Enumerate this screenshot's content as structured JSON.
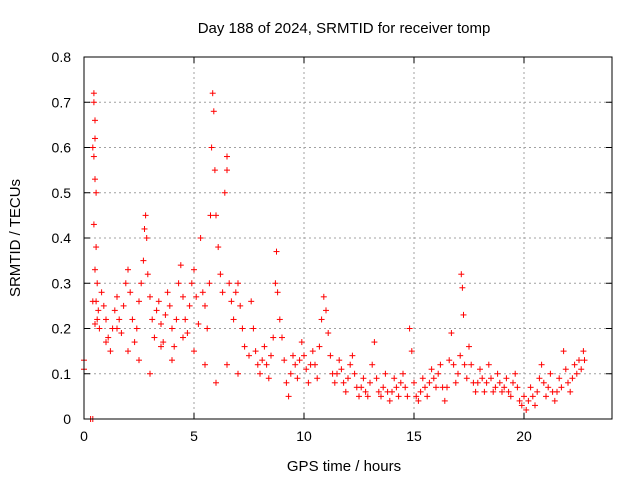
{
  "chart_data": {
    "type": "scatter",
    "title": "Day 188 of 2024, SRMTID for receiver tomp",
    "xlabel": "GPS time / hours",
    "ylabel": "SRMTID / TECUs",
    "xlim": [
      0,
      24
    ],
    "ylim": [
      0,
      0.8
    ],
    "xticks": [
      0,
      5,
      10,
      15,
      20
    ],
    "xtick_labels": [
      "0",
      "5",
      "10",
      "15",
      "20"
    ],
    "yticks": [
      0,
      0.1,
      0.2,
      0.3,
      0.4,
      0.5,
      0.6,
      0.7,
      0.8
    ],
    "ytick_labels": [
      "0",
      "0.1",
      "0.2",
      "0.3",
      "0.4",
      "0.5",
      "0.6",
      "0.7",
      "0.8"
    ],
    "grid": true,
    "marker": "+",
    "color": "#ff0000",
    "series": [
      {
        "name": "SRMTID",
        "points": [
          [
            0.0,
            0.13
          ],
          [
            0.0,
            0.11
          ],
          [
            0.3,
            0.0
          ],
          [
            0.4,
            0.0
          ],
          [
            0.4,
            0.6
          ],
          [
            0.45,
            0.72
          ],
          [
            0.45,
            0.7
          ],
          [
            0.5,
            0.66
          ],
          [
            0.5,
            0.62
          ],
          [
            0.45,
            0.58
          ],
          [
            0.5,
            0.53
          ],
          [
            0.55,
            0.5
          ],
          [
            0.45,
            0.43
          ],
          [
            0.55,
            0.38
          ],
          [
            0.5,
            0.33
          ],
          [
            0.6,
            0.3
          ],
          [
            0.55,
            0.26
          ],
          [
            0.65,
            0.24
          ],
          [
            0.6,
            0.22
          ],
          [
            0.7,
            0.2
          ],
          [
            0.4,
            0.26
          ],
          [
            0.5,
            0.21
          ],
          [
            0.8,
            0.28
          ],
          [
            0.9,
            0.25
          ],
          [
            1.0,
            0.22
          ],
          [
            1.1,
            0.18
          ],
          [
            1.2,
            0.15
          ],
          [
            1.3,
            0.2
          ],
          [
            1.4,
            0.24
          ],
          [
            1.5,
            0.27
          ],
          [
            1.6,
            0.22
          ],
          [
            1.7,
            0.19
          ],
          [
            1.8,
            0.25
          ],
          [
            1.9,
            0.3
          ],
          [
            2.0,
            0.33
          ],
          [
            2.1,
            0.28
          ],
          [
            2.2,
            0.22
          ],
          [
            2.3,
            0.17
          ],
          [
            2.4,
            0.2
          ],
          [
            2.5,
            0.26
          ],
          [
            2.6,
            0.3
          ],
          [
            2.7,
            0.35
          ],
          [
            2.75,
            0.42
          ],
          [
            2.8,
            0.45
          ],
          [
            2.85,
            0.4
          ],
          [
            2.9,
            0.32
          ],
          [
            3.0,
            0.27
          ],
          [
            3.1,
            0.22
          ],
          [
            3.2,
            0.18
          ],
          [
            3.3,
            0.24
          ],
          [
            3.4,
            0.26
          ],
          [
            3.5,
            0.21
          ],
          [
            3.6,
            0.17
          ],
          [
            3.7,
            0.23
          ],
          [
            3.8,
            0.28
          ],
          [
            3.9,
            0.25
          ],
          [
            4.0,
            0.2
          ],
          [
            4.1,
            0.16
          ],
          [
            4.2,
            0.22
          ],
          [
            4.3,
            0.3
          ],
          [
            4.4,
            0.34
          ],
          [
            4.5,
            0.27
          ],
          [
            4.6,
            0.22
          ],
          [
            4.7,
            0.19
          ],
          [
            4.8,
            0.25
          ],
          [
            4.9,
            0.3
          ],
          [
            5.0,
            0.33
          ],
          [
            5.1,
            0.27
          ],
          [
            5.2,
            0.21
          ],
          [
            5.3,
            0.4
          ],
          [
            5.4,
            0.28
          ],
          [
            5.5,
            0.25
          ],
          [
            5.6,
            0.2
          ],
          [
            5.7,
            0.3
          ],
          [
            5.75,
            0.45
          ],
          [
            5.8,
            0.6
          ],
          [
            5.85,
            0.72
          ],
          [
            5.9,
            0.68
          ],
          [
            5.95,
            0.55
          ],
          [
            6.0,
            0.45
          ],
          [
            6.1,
            0.38
          ],
          [
            6.2,
            0.32
          ],
          [
            6.3,
            0.28
          ],
          [
            6.4,
            0.5
          ],
          [
            6.5,
            0.58
          ],
          [
            6.5,
            0.55
          ],
          [
            6.6,
            0.3
          ],
          [
            6.7,
            0.26
          ],
          [
            6.8,
            0.22
          ],
          [
            6.9,
            0.28
          ],
          [
            7.0,
            0.3
          ],
          [
            7.1,
            0.25
          ],
          [
            7.2,
            0.2
          ],
          [
            7.3,
            0.16
          ],
          [
            1.0,
            0.17
          ],
          [
            1.5,
            0.2
          ],
          [
            2.0,
            0.15
          ],
          [
            2.5,
            0.13
          ],
          [
            3.0,
            0.1
          ],
          [
            3.5,
            0.16
          ],
          [
            4.0,
            0.13
          ],
          [
            4.5,
            0.18
          ],
          [
            5.0,
            0.15
          ],
          [
            5.5,
            0.12
          ],
          [
            6.0,
            0.08
          ],
          [
            6.5,
            0.12
          ],
          [
            7.0,
            0.1
          ],
          [
            7.5,
            0.14
          ],
          [
            7.6,
            0.26
          ],
          [
            7.7,
            0.2
          ],
          [
            7.8,
            0.15
          ],
          [
            7.9,
            0.12
          ],
          [
            8.0,
            0.1
          ],
          [
            8.1,
            0.13
          ],
          [
            8.2,
            0.16
          ],
          [
            8.3,
            0.12
          ],
          [
            8.4,
            0.09
          ],
          [
            8.5,
            0.14
          ],
          [
            8.6,
            0.18
          ],
          [
            8.7,
            0.3
          ],
          [
            8.75,
            0.37
          ],
          [
            8.8,
            0.28
          ],
          [
            8.9,
            0.22
          ],
          [
            9.0,
            0.18
          ],
          [
            9.1,
            0.13
          ],
          [
            9.2,
            0.08
          ],
          [
            9.3,
            0.05
          ],
          [
            9.4,
            0.1
          ],
          [
            9.5,
            0.14
          ],
          [
            9.6,
            0.12
          ],
          [
            9.7,
            0.09
          ],
          [
            9.8,
            0.13
          ],
          [
            9.9,
            0.17
          ],
          [
            10.0,
            0.14
          ],
          [
            10.1,
            0.11
          ],
          [
            10.2,
            0.08
          ],
          [
            10.3,
            0.12
          ],
          [
            10.4,
            0.15
          ],
          [
            10.5,
            0.12
          ],
          [
            10.6,
            0.09
          ],
          [
            10.7,
            0.16
          ],
          [
            10.8,
            0.22
          ],
          [
            10.9,
            0.27
          ],
          [
            11.0,
            0.24
          ],
          [
            11.1,
            0.19
          ],
          [
            11.2,
            0.14
          ],
          [
            11.3,
            0.1
          ],
          [
            11.4,
            0.08
          ],
          [
            11.5,
            0.1
          ],
          [
            11.6,
            0.13
          ],
          [
            11.7,
            0.11
          ],
          [
            11.8,
            0.08
          ],
          [
            11.9,
            0.06
          ],
          [
            12.0,
            0.09
          ],
          [
            12.1,
            0.12
          ],
          [
            12.2,
            0.14
          ],
          [
            12.3,
            0.1
          ],
          [
            12.4,
            0.07
          ],
          [
            12.5,
            0.05
          ],
          [
            12.6,
            0.07
          ],
          [
            12.7,
            0.09
          ],
          [
            12.8,
            0.06
          ],
          [
            12.9,
            0.05
          ],
          [
            13.0,
            0.08
          ],
          [
            13.1,
            0.12
          ],
          [
            13.2,
            0.17
          ],
          [
            13.3,
            0.09
          ],
          [
            13.4,
            0.06
          ],
          [
            13.5,
            0.05
          ],
          [
            13.6,
            0.07
          ],
          [
            13.7,
            0.1
          ],
          [
            13.8,
            0.06
          ],
          [
            13.9,
            0.04
          ],
          [
            14.0,
            0.06
          ],
          [
            14.1,
            0.09
          ],
          [
            14.2,
            0.07
          ],
          [
            14.3,
            0.05
          ],
          [
            14.4,
            0.08
          ],
          [
            14.5,
            0.1
          ],
          [
            14.6,
            0.07
          ],
          [
            14.7,
            0.05
          ],
          [
            14.8,
            0.2
          ],
          [
            14.9,
            0.15
          ],
          [
            15.0,
            0.08
          ],
          [
            15.1,
            0.05
          ],
          [
            15.2,
            0.04
          ],
          [
            15.3,
            0.06
          ],
          [
            15.4,
            0.09
          ],
          [
            15.5,
            0.07
          ],
          [
            15.6,
            0.05
          ],
          [
            15.7,
            0.08
          ],
          [
            15.8,
            0.11
          ],
          [
            15.9,
            0.09
          ],
          [
            16.0,
            0.07
          ],
          [
            16.1,
            0.1
          ],
          [
            16.2,
            0.12
          ],
          [
            16.3,
            0.07
          ],
          [
            16.4,
            0.04
          ],
          [
            16.5,
            0.07
          ],
          [
            16.6,
            0.13
          ],
          [
            16.7,
            0.19
          ],
          [
            16.8,
            0.12
          ],
          [
            16.9,
            0.08
          ],
          [
            17.0,
            0.1
          ],
          [
            17.1,
            0.14
          ],
          [
            17.15,
            0.32
          ],
          [
            17.2,
            0.29
          ],
          [
            17.25,
            0.23
          ],
          [
            17.3,
            0.12
          ],
          [
            17.4,
            0.09
          ],
          [
            17.5,
            0.16
          ],
          [
            17.6,
            0.12
          ],
          [
            17.7,
            0.08
          ],
          [
            17.8,
            0.06
          ],
          [
            17.9,
            0.08
          ],
          [
            18.0,
            0.11
          ],
          [
            18.1,
            0.09
          ],
          [
            18.2,
            0.06
          ],
          [
            18.3,
            0.08
          ],
          [
            18.4,
            0.12
          ],
          [
            18.5,
            0.09
          ],
          [
            18.6,
            0.06
          ],
          [
            18.7,
            0.07
          ],
          [
            18.8,
            0.1
          ],
          [
            18.9,
            0.08
          ],
          [
            19.0,
            0.06
          ],
          [
            19.1,
            0.07
          ],
          [
            19.2,
            0.09
          ],
          [
            19.3,
            0.06
          ],
          [
            19.4,
            0.05
          ],
          [
            19.5,
            0.08
          ],
          [
            19.6,
            0.1
          ],
          [
            19.7,
            0.07
          ],
          [
            19.8,
            0.04
          ],
          [
            19.9,
            0.03
          ],
          [
            20.0,
            0.05
          ],
          [
            20.1,
            0.02
          ],
          [
            20.2,
            0.04
          ],
          [
            20.3,
            0.07
          ],
          [
            20.4,
            0.05
          ],
          [
            20.5,
            0.03
          ],
          [
            20.6,
            0.06
          ],
          [
            20.7,
            0.09
          ],
          [
            20.8,
            0.12
          ],
          [
            20.9,
            0.08
          ],
          [
            21.0,
            0.05
          ],
          [
            21.1,
            0.07
          ],
          [
            21.2,
            0.1
          ],
          [
            21.3,
            0.06
          ],
          [
            21.4,
            0.04
          ],
          [
            21.5,
            0.06
          ],
          [
            21.6,
            0.09
          ],
          [
            21.7,
            0.07
          ],
          [
            21.8,
            0.15
          ],
          [
            21.9,
            0.11
          ],
          [
            22.0,
            0.08
          ],
          [
            22.1,
            0.06
          ],
          [
            22.2,
            0.09
          ],
          [
            22.3,
            0.12
          ],
          [
            22.4,
            0.1
          ],
          [
            22.5,
            0.13
          ],
          [
            22.6,
            0.11
          ],
          [
            22.7,
            0.15
          ],
          [
            22.75,
            0.13
          ]
        ]
      }
    ]
  }
}
